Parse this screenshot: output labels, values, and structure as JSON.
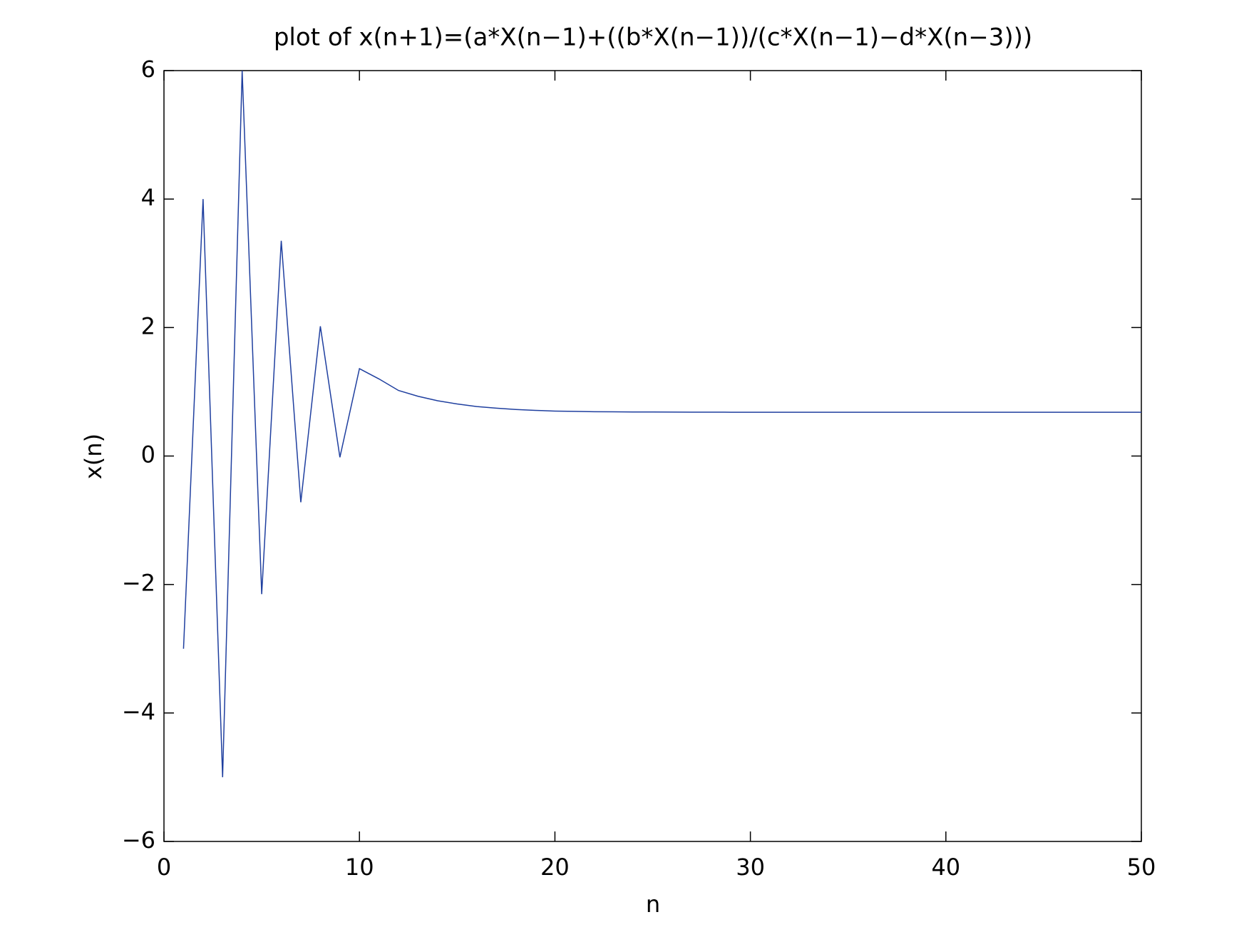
{
  "chart_data": {
    "type": "line",
    "title": "plot of x(n+1)=(a*X(n−1)+((b*X(n−1))/(c*X(n−1)−d*X(n−3)))",
    "xlabel": "n",
    "ylabel": "x(n)",
    "x": [
      1,
      2,
      3,
      4,
      5,
      6,
      7,
      8,
      9,
      10,
      11,
      12,
      13,
      14,
      15,
      16,
      17,
      18,
      19,
      20,
      21,
      22,
      23,
      24,
      25,
      26,
      27,
      28,
      29,
      30,
      31,
      32,
      33,
      34,
      35,
      36,
      37,
      38,
      39,
      40,
      41,
      42,
      43,
      44,
      45,
      46,
      47,
      48,
      49,
      50
    ],
    "series": [
      {
        "name": "x(n)",
        "color": "#1f3f9f",
        "values": [
          -3,
          4,
          -5,
          6,
          -2.15,
          3.35,
          -0.72,
          2.02,
          -0.02,
          1.36,
          1.2,
          1.02,
          0.93,
          0.86,
          0.81,
          0.77,
          0.745,
          0.725,
          0.71,
          0.7,
          0.695,
          0.69,
          0.688,
          0.686,
          0.685,
          0.684,
          0.683,
          0.683,
          0.682,
          0.682,
          0.682,
          0.682,
          0.682,
          0.682,
          0.682,
          0.682,
          0.682,
          0.682,
          0.682,
          0.682,
          0.682,
          0.682,
          0.682,
          0.682,
          0.682,
          0.682,
          0.682,
          0.682,
          0.682,
          0.682
        ]
      }
    ],
    "xlim": [
      0,
      50
    ],
    "xticks": [
      0,
      10,
      20,
      30,
      40,
      50
    ],
    "ylim": [
      -6,
      6
    ],
    "yticks": [
      {
        "value": -6,
        "label": "−6"
      },
      {
        "value": -4,
        "label": "−4"
      },
      {
        "value": -2,
        "label": "−2"
      },
      0,
      2,
      4,
      6
    ],
    "grid": false
  }
}
